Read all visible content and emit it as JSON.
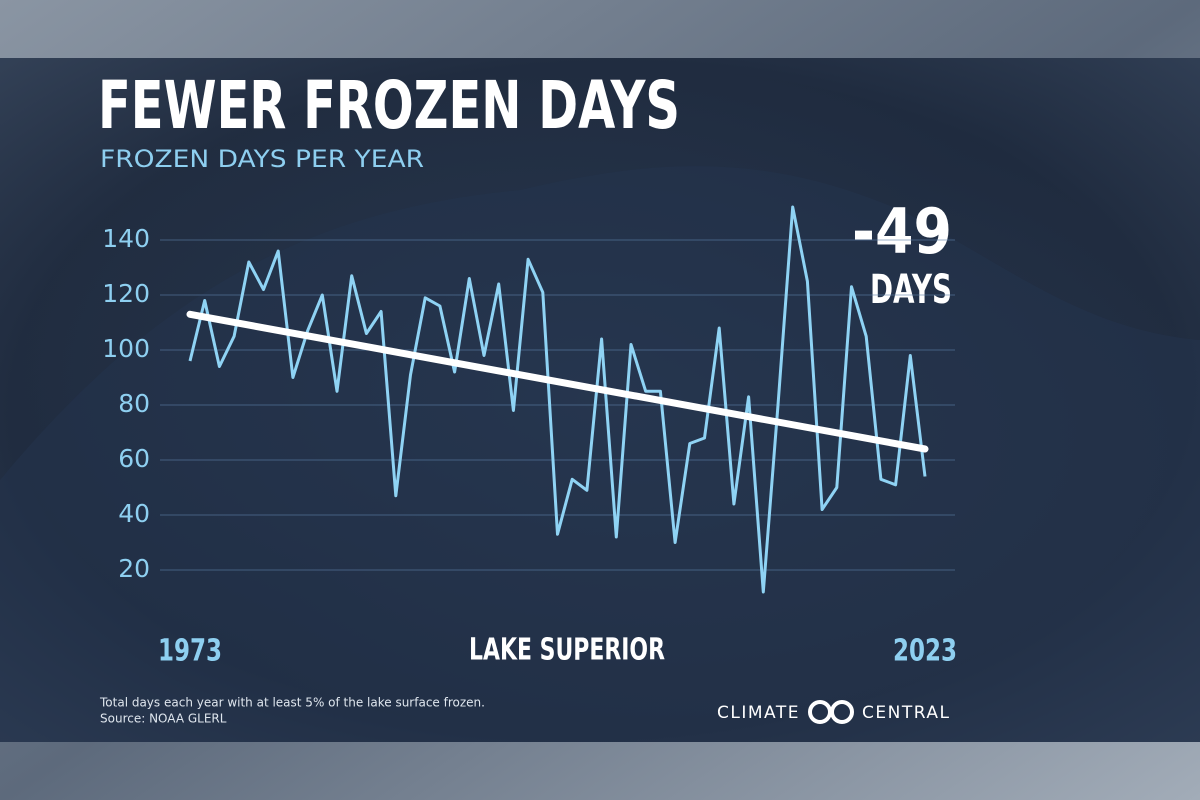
{
  "chart_data": {
    "type": "line",
    "title": "FEWER FROZEN DAYS",
    "subtitle": "FROZEN DAYS PER YEAR",
    "x": [
      1973,
      1974,
      1975,
      1976,
      1977,
      1978,
      1979,
      1980,
      1981,
      1982,
      1983,
      1984,
      1985,
      1986,
      1987,
      1988,
      1989,
      1990,
      1991,
      1992,
      1993,
      1994,
      1995,
      1996,
      1997,
      1998,
      1999,
      2000,
      2001,
      2002,
      2003,
      2004,
      2005,
      2006,
      2007,
      2008,
      2009,
      2010,
      2011,
      2012,
      2013,
      2014,
      2015,
      2016,
      2017,
      2018,
      2019,
      2020,
      2021,
      2022,
      2023
    ],
    "series": [
      {
        "name": "LAKE SUPERIOR",
        "color": "#8fd3f4",
        "values": [
          96,
          118,
          94,
          105,
          132,
          122,
          136,
          90,
          107,
          120,
          85,
          127,
          106,
          114,
          47,
          91,
          119,
          116,
          92,
          126,
          98,
          124,
          78,
          133,
          121,
          33,
          53,
          49,
          104,
          32,
          102,
          85,
          85,
          30,
          66,
          68,
          108,
          44,
          83,
          12,
          80,
          152,
          125,
          42,
          50,
          123,
          105,
          53,
          51,
          98,
          54
        ]
      }
    ],
    "trend": {
      "color": "#ffffff",
      "x": [
        1973,
        2023
      ],
      "values": [
        113,
        64
      ]
    },
    "annotation": {
      "value": "-49",
      "unit": "DAYS"
    },
    "xlim": [
      1973,
      2023
    ],
    "xticks": [
      1973,
      2023
    ],
    "ylim": [
      0,
      155
    ],
    "yticks": [
      20,
      40,
      60,
      80,
      100,
      120,
      140
    ],
    "grid": true,
    "footnote": [
      "Total days each year with at least 5% of the lake surface frozen.",
      "Source: NOAA GLERL"
    ],
    "logo": {
      "left": "CLIMATE",
      "right": "CENTRAL"
    }
  }
}
